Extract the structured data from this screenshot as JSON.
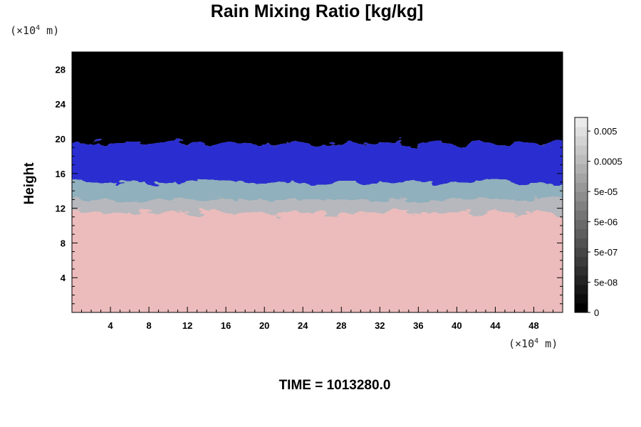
{
  "chart_data": {
    "type": "heatmap",
    "title": "Rain Mixing Ratio [kg/kg]",
    "ylabel": "Height",
    "xlabel": "",
    "x_unit": "(×10",
    "y_unit": "(×10",
    "unit_exponent": "4",
    "unit_suffix": " m)",
    "xlim": [
      0,
      51
    ],
    "ylim": [
      0,
      30
    ],
    "x_ticks": [
      4,
      8,
      12,
      16,
      20,
      24,
      28,
      32,
      36,
      40,
      44,
      48
    ],
    "y_ticks": [
      4,
      8,
      12,
      16,
      20,
      24,
      28
    ],
    "colorbar": {
      "labels": [
        "0.005",
        "0.0005",
        "5e-05",
        "5e-06",
        "5e-07",
        "5e-08",
        "0"
      ],
      "label_values": [
        0.005,
        0.0005,
        5e-05,
        5e-06,
        5e-07,
        5e-08,
        0
      ]
    },
    "layers": [
      {
        "name": "pink",
        "color": "#ecbcbc",
        "from": 0,
        "to": 11.5
      },
      {
        "name": "grey",
        "color": "#b7b8bd",
        "from": 11.5,
        "to": 13
      },
      {
        "name": "teal",
        "color": "#8fb0bc",
        "from": 13,
        "to": 15
      },
      {
        "name": "blue",
        "color": "#2b2ed0",
        "from": 15,
        "to": 19.5
      },
      {
        "name": "black",
        "color": "#000000",
        "from": 19.5,
        "to": 30
      }
    ]
  },
  "footer": {
    "time_label": "TIME = 1013280.0"
  }
}
